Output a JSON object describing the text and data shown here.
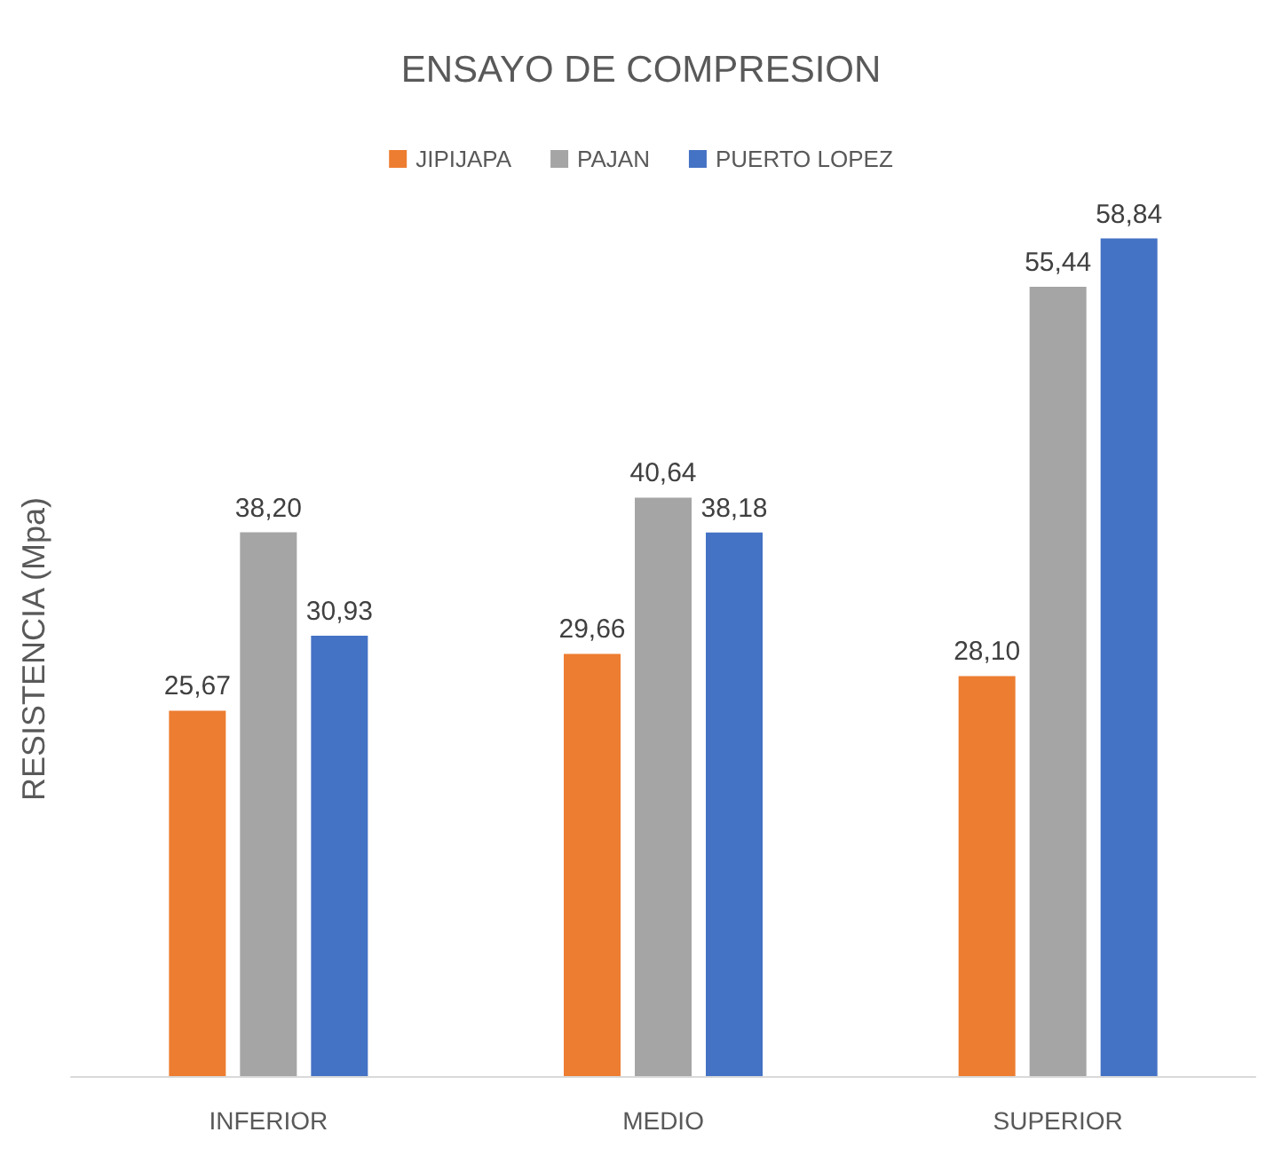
{
  "chart_data": {
    "type": "bar",
    "title": "ENSAYO DE COMPRESION",
    "ylabel": "RESISTENCIA (Mpa)",
    "categories": [
      "INFERIOR",
      "MEDIO",
      "SUPERIOR"
    ],
    "legend": "top",
    "grid": false,
    "series": [
      {
        "name": "JIPIJAPA",
        "color": "#ed7d31",
        "values": [
          25.67,
          29.66,
          28.1
        ],
        "value_labels": [
          "25,67",
          "29,66",
          "28,10"
        ]
      },
      {
        "name": "PAJAN",
        "color": "#a5a5a5",
        "values": [
          38.2,
          40.64,
          55.44
        ],
        "value_labels": [
          "38,20",
          "40,64",
          "55,44"
        ]
      },
      {
        "name": "PUERTO LOPEZ",
        "color": "#4472c4",
        "values": [
          30.93,
          38.18,
          58.84
        ],
        "value_labels": [
          "30,93",
          "38,18",
          "58,84"
        ]
      }
    ]
  }
}
